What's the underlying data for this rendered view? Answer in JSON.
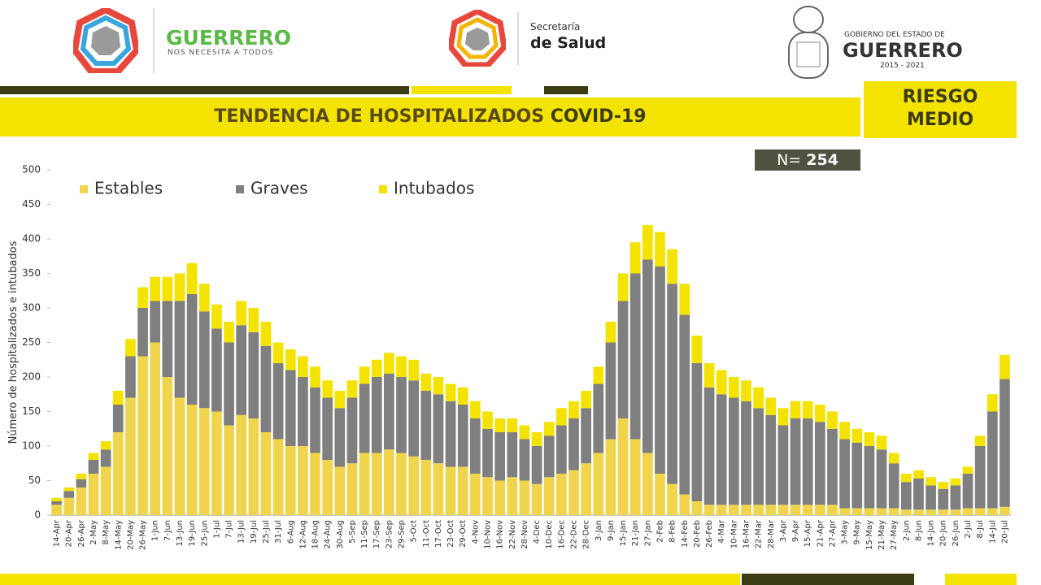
{
  "header": {
    "brand_left": "GUERRERO",
    "brand_left_tagline": "NOS NECESITA A TODOS",
    "brand_mid_top": "Secretaría",
    "brand_mid_bottom": "de Salud",
    "brand_right_top": "GOBIERNO DEL ESTADO DE",
    "brand_right_name": "GUERRERO",
    "brand_right_years": "2015 - 2021",
    "risk_line1": "RIESGO",
    "risk_line2": "MEDIO"
  },
  "chart_data": {
    "type": "stacked_bar",
    "title": "TENDENCIA DE HOSPITALIZADOS",
    "title_suffix": "COVID-19",
    "n_label": "N=",
    "n_value": 254,
    "y_label": "Número de hospitalizados e intubados",
    "categories": [
      "14-Apr",
      "20-Apr",
      "26-Apr",
      "2-May",
      "8-May",
      "14-May",
      "20-May",
      "26-May",
      "1-Jun",
      "7-Jun",
      "13-Jun",
      "19-Jun",
      "25-Jun",
      "1-Jul",
      "7-Jul",
      "13-Jul",
      "19-Jul",
      "25-Jul",
      "31-Jul",
      "6-Aug",
      "12-Aug",
      "18-Aug",
      "24-Aug",
      "30-Aug",
      "5-Sep",
      "11-Sep",
      "17-Sep",
      "23-Sep",
      "29-Sep",
      "5-Oct",
      "11-Oct",
      "17-Oct",
      "23-Oct",
      "29-Oct",
      "4-Nov",
      "10-Nov",
      "16-Nov",
      "22-Nov",
      "28-Nov",
      "4-Dec",
      "10-Dec",
      "16-Dec",
      "22-Dec",
      "28-Dec",
      "3-Jan",
      "9-Jan",
      "15-Jan",
      "21-Jan",
      "27-Jan",
      "2-Feb",
      "8-Feb",
      "14-Feb",
      "20-Feb",
      "26-Feb",
      "4-Mar",
      "10-Mar",
      "16-Mar",
      "22-Mar",
      "28-Mar",
      "3-Apr",
      "9-Apr",
      "15-Apr",
      "21-Apr",
      "27-Apr",
      "3-May",
      "9-May",
      "15-May",
      "21-May",
      "27-May",
      "2-Jun",
      "8-Jun",
      "14-Jun",
      "20-Jun",
      "26-Jun",
      "2-Jul",
      "8-Jul",
      "14-Jul",
      "20-Jul"
    ],
    "series": [
      {
        "name": "Estables",
        "color": "#f0d54c",
        "values": [
          15,
          25,
          40,
          60,
          70,
          120,
          170,
          230,
          250,
          200,
          170,
          160,
          155,
          150,
          130,
          145,
          140,
          120,
          110,
          100,
          100,
          90,
          80,
          70,
          75,
          90,
          90,
          95,
          90,
          85,
          80,
          75,
          70,
          70,
          60,
          55,
          50,
          55,
          50,
          45,
          55,
          60,
          65,
          75,
          90,
          110,
          140,
          110,
          90,
          60,
          45,
          30,
          20,
          15,
          15,
          15,
          15,
          15,
          15,
          15,
          15,
          15,
          15,
          15,
          10,
          10,
          10,
          10,
          10,
          8,
          8,
          8,
          8,
          8,
          10,
          10,
          10,
          12
        ]
      },
      {
        "name": "Graves",
        "color": "#7f7f7f",
        "values": [
          5,
          10,
          12,
          20,
          25,
          40,
          60,
          70,
          60,
          110,
          140,
          160,
          140,
          120,
          120,
          130,
          125,
          125,
          110,
          110,
          100,
          95,
          90,
          85,
          95,
          100,
          110,
          110,
          110,
          110,
          100,
          100,
          95,
          90,
          80,
          70,
          70,
          65,
          60,
          55,
          60,
          70,
          75,
          80,
          100,
          140,
          170,
          240,
          280,
          300,
          290,
          260,
          200,
          170,
          160,
          155,
          150,
          140,
          130,
          115,
          125,
          125,
          120,
          110,
          100,
          95,
          90,
          85,
          65,
          40,
          45,
          35,
          30,
          35,
          50,
          90,
          140,
          185
        ]
      },
      {
        "name": "Intubados",
        "color": "#f4e300",
        "values": [
          5,
          5,
          8,
          10,
          12,
          20,
          25,
          30,
          35,
          35,
          40,
          45,
          40,
          35,
          30,
          35,
          35,
          35,
          30,
          30,
          30,
          30,
          25,
          25,
          25,
          25,
          25,
          30,
          30,
          30,
          25,
          25,
          25,
          25,
          25,
          25,
          20,
          20,
          20,
          20,
          20,
          25,
          25,
          25,
          25,
          30,
          40,
          45,
          50,
          50,
          50,
          45,
          40,
          35,
          35,
          30,
          30,
          30,
          25,
          25,
          25,
          25,
          25,
          25,
          25,
          20,
          20,
          20,
          15,
          12,
          12,
          12,
          10,
          10,
          10,
          15,
          25,
          35
        ]
      }
    ],
    "ylim": [
      0,
      500
    ],
    "yticks": [
      0,
      50,
      100,
      150,
      200,
      250,
      300,
      350,
      400,
      450,
      500
    ],
    "legend": "top-left"
  }
}
